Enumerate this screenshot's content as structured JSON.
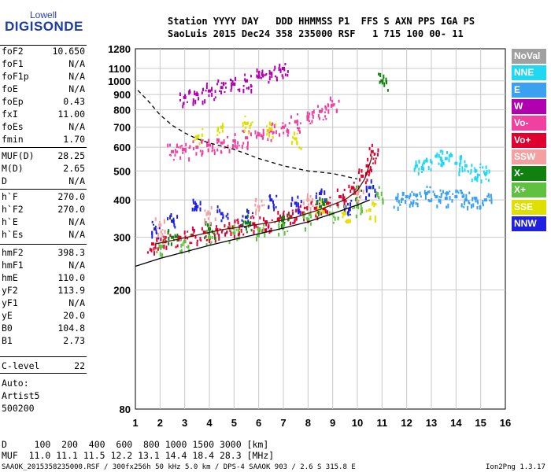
{
  "logo": {
    "line1": "Lowell",
    "line2": "DIGISONDE"
  },
  "header": {
    "row1": "Station YYYY DAY   DDD HHMMSS P1  FFS S AXN PPS IGA PS",
    "row2": "SaoLuis 2015 Dec24 358 235000 RSF   1 715 100 00- 11"
  },
  "params_top": [
    {
      "name": "foF2",
      "value": "10.650"
    },
    {
      "name": "foF1",
      "value": "N/A"
    },
    {
      "name": "foF1p",
      "value": "N/A"
    },
    {
      "name": "foE",
      "value": "N/A"
    },
    {
      "name": "foEp",
      "value": "0.43"
    },
    {
      "name": "fxI",
      "value": "11.00"
    },
    {
      "name": "foEs",
      "value": "N/A"
    },
    {
      "name": "fmin",
      "value": "1.70"
    }
  ],
  "params_mid": [
    {
      "name": "MUF(D)",
      "value": "28.25"
    },
    {
      "name": "M(D)",
      "value": "2.65"
    },
    {
      "name": "D",
      "value": "N/A"
    }
  ],
  "params_h": [
    {
      "name": "h`F",
      "value": "270.0"
    },
    {
      "name": "h`F2",
      "value": "270.0"
    },
    {
      "name": "h`E",
      "value": "N/A"
    },
    {
      "name": "h`Es",
      "value": "N/A"
    }
  ],
  "params_bottom": [
    {
      "name": "hmF2",
      "value": "398.3"
    },
    {
      "name": "hmF1",
      "value": "N/A"
    },
    {
      "name": "hmE",
      "value": "110.0"
    },
    {
      "name": "yF2",
      "value": "113.9"
    },
    {
      "name": "yF1",
      "value": "N/A"
    },
    {
      "name": "yE",
      "value": "20.0"
    },
    {
      "name": "B0",
      "value": "104.8"
    },
    {
      "name": "B1",
      "value": "2.73"
    }
  ],
  "clevel": {
    "name": "C-level",
    "value": "22"
  },
  "auto": [
    "Auto:",
    "Artist5",
    "500200"
  ],
  "legend": [
    {
      "label": "NoVal",
      "color": "#a0a0a0"
    },
    {
      "label": "NNE",
      "color": "#22d8f0"
    },
    {
      "label": "E",
      "color": "#3aa0f0"
    },
    {
      "label": "W",
      "color": "#b000b0"
    },
    {
      "label": "Vo-",
      "color": "#f040a0"
    },
    {
      "label": "Vo+",
      "color": "#e00030"
    },
    {
      "label": "SSW",
      "color": "#f4a0a0"
    },
    {
      "label": "X-",
      "color": "#108010"
    },
    {
      "label": "X+",
      "color": "#60c040"
    },
    {
      "label": "SSE",
      "color": "#e0e000"
    },
    {
      "label": "NNW",
      "color": "#2020e0"
    }
  ],
  "footer": {
    "row1": "D     100  200  400  600  800 1000 1500 3000 [km]",
    "row2": "MUF  11.0 11.1 11.5 12.2 13.1 14.4 18.4 28.3 [MHz]",
    "row3": "SAAOK_2015358235000.RSF / 300fx256h 50 kHz 5.0 km / DPS-4 SAAOK 903 / 2.6 S 315.8 E",
    "version": "Ion2Png 1.3.17"
  },
  "chart_data": {
    "type": "scatter",
    "title": "",
    "xlabel": "",
    "ylabel": "",
    "xlim": [
      1,
      16
    ],
    "ylim": [
      80,
      1280
    ],
    "y_scale": "log",
    "x_ticks": [
      1,
      2,
      3,
      4,
      5,
      6,
      7,
      8,
      9,
      10,
      11,
      12,
      13,
      14,
      15,
      16
    ],
    "y_ticks": [
      80,
      200,
      300,
      400,
      500,
      600,
      700,
      800,
      900,
      1000,
      1100,
      1280
    ],
    "grid": true,
    "legend_position": "right",
    "series": [
      {
        "name": "Vo+",
        "color": "#e00030",
        "x": [
          1.7,
          2.2,
          2.8,
          3.3,
          3.8,
          4.3,
          4.8,
          5.3,
          5.8,
          6.3,
          6.8,
          7.3,
          7.8,
          8.3,
          8.8,
          9.3,
          9.8,
          10.2,
          10.4,
          10.6
        ],
        "y": [
          285,
          290,
          300,
          305,
          312,
          318,
          323,
          328,
          333,
          338,
          345,
          352,
          362,
          375,
          390,
          410,
          440,
          480,
          520,
          580
        ]
      },
      {
        "name": "X+",
        "color": "#60c040",
        "x": [
          2.0,
          3.0,
          4.0,
          5.0,
          6.0,
          7.0,
          8.0,
          9.0,
          10.0,
          10.8
        ],
        "y": [
          280,
          290,
          300,
          310,
          320,
          330,
          345,
          360,
          380,
          420
        ]
      },
      {
        "name": "Vo- (2nd hop)",
        "color": "#f040a0",
        "x": [
          2.5,
          3.0,
          3.5,
          4.0,
          4.5,
          5.0,
          5.5,
          6.0,
          6.5,
          7.0,
          7.5,
          8.0,
          8.5,
          9.0
        ],
        "y": [
          580,
          590,
          600,
          610,
          620,
          630,
          645,
          660,
          680,
          700,
          730,
          760,
          790,
          830
        ]
      },
      {
        "name": "W (3rd hop)",
        "color": "#b000b0",
        "x": [
          3.0,
          3.5,
          4.0,
          4.5,
          5.0,
          5.5,
          6.0,
          6.5,
          7.0
        ],
        "y": [
          880,
          900,
          925,
          950,
          975,
          1000,
          1030,
          1060,
          1100
        ]
      },
      {
        "name": "NNE",
        "color": "#22d8f0",
        "x": [
          12.4,
          12.8,
          13.2,
          13.6,
          14.0,
          14.4,
          14.8,
          15.2
        ],
        "y": [
          520,
          540,
          560,
          550,
          530,
          520,
          500,
          490
        ]
      },
      {
        "name": "E",
        "color": "#3aa0f0",
        "x": [
          11.6,
          12.0,
          12.4,
          12.8,
          13.2,
          13.6,
          14.0,
          14.4,
          14.8,
          15.2
        ],
        "y": [
          405,
          410,
          415,
          420,
          410,
          405,
          410,
          400,
          405,
          400
        ]
      },
      {
        "name": "NNW",
        "color": "#2020e0",
        "x": [
          1.8,
          2.5,
          3.5,
          4.5,
          5.5,
          6.5,
          7.5,
          8.5,
          9.5,
          10.5
        ],
        "y": [
          320,
          340,
          380,
          360,
          350,
          400,
          390,
          420,
          380,
          440
        ]
      },
      {
        "name": "SSE",
        "color": "#e0e000",
        "x": [
          3.5,
          4.5,
          5.5,
          6.5,
          7.5,
          8.5,
          9.5,
          10.5
        ],
        "y": [
          650,
          700,
          720,
          690,
          640,
          380,
          360,
          370
        ]
      },
      {
        "name": "X-",
        "color": "#108010",
        "x": [
          2.5,
          4.0,
          5.5,
          7.0,
          8.5,
          10.0,
          11.0
        ],
        "y": [
          300,
          320,
          335,
          350,
          380,
          420,
          1000
        ]
      },
      {
        "name": "SSW",
        "color": "#f4a0a0",
        "x": [
          2.0,
          4.0,
          6.0,
          8.0,
          10.0
        ],
        "y": [
          330,
          360,
          380,
          400,
          420
        ]
      }
    ],
    "curves": [
      {
        "name": "profile",
        "style": "solid",
        "color": "#000000",
        "x": [
          1,
          2,
          3,
          4,
          5,
          6,
          7,
          8,
          9,
          10,
          10.5
        ],
        "y": [
          240,
          255,
          268,
          282,
          295,
          308,
          322,
          338,
          360,
          385,
          400
        ]
      },
      {
        "name": "trace",
        "style": "solid",
        "color": "#5a1010",
        "x": [
          1.8,
          2.5,
          3.5,
          4.5,
          5.5,
          6.5,
          7.5,
          8.5,
          9.5,
          10.0,
          10.3,
          10.6
        ],
        "y": [
          285,
          293,
          305,
          318,
          327,
          336,
          350,
          372,
          400,
          430,
          470,
          560
        ]
      },
      {
        "name": "muf",
        "style": "dashed",
        "color": "#000000",
        "x": [
          1.1,
          1.5,
          2.0,
          2.5,
          3.0,
          3.5,
          4.0,
          4.5,
          5.0,
          5.5,
          6.0,
          6.5,
          7.0,
          7.5,
          8.0,
          8.5,
          9.0,
          9.5,
          10.0
        ],
        "y": [
          930,
          860,
          770,
          710,
          670,
          640,
          620,
          605,
          590,
          570,
          550,
          535,
          520,
          510,
          500,
          495,
          490,
          480,
          470
        ]
      }
    ]
  }
}
